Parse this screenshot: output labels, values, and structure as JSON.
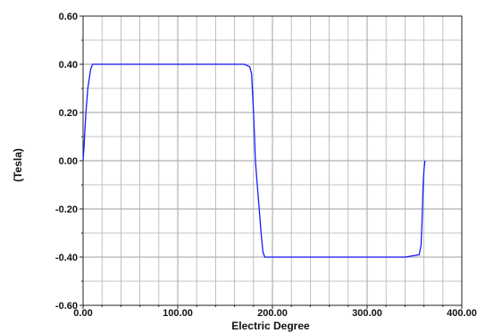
{
  "chart_data": {
    "type": "line",
    "xlabel": "Electric Degree",
    "ylabel": "(Tesla)",
    "xlim": [
      0,
      400
    ],
    "ylim": [
      -0.6,
      0.6
    ],
    "x_ticks": [
      0,
      100,
      200,
      300,
      400
    ],
    "y_ticks": [
      -0.6,
      -0.4,
      -0.2,
      0.0,
      0.2,
      0.4,
      0.6
    ],
    "x_tick_labels": [
      "0.00",
      "100.00",
      "200.00",
      "300.00",
      "400.00"
    ],
    "y_tick_labels": [
      "-0.60",
      "-0.40",
      "-0.20",
      "0.00",
      "0.20",
      "0.40",
      "0.60"
    ],
    "grid": true,
    "series_color": "#1a1aff",
    "grid_color": "#b0b0b0",
    "series": [
      {
        "x": [
          0,
          1,
          2,
          3,
          5,
          8,
          10,
          20,
          60,
          100,
          140,
          170,
          176,
          178,
          180,
          181,
          182,
          184,
          186,
          188,
          190,
          192,
          195,
          200,
          250,
          300,
          340,
          355,
          357,
          358,
          359,
          360,
          361
        ],
        "y": [
          0.0,
          0.06,
          0.13,
          0.2,
          0.3,
          0.38,
          0.4,
          0.4,
          0.4,
          0.4,
          0.4,
          0.4,
          0.39,
          0.36,
          0.2,
          0.1,
          0.0,
          -0.1,
          -0.2,
          -0.3,
          -0.38,
          -0.4,
          -0.4,
          -0.4,
          -0.4,
          -0.4,
          -0.4,
          -0.39,
          -0.35,
          -0.25,
          -0.12,
          -0.04,
          0.0
        ]
      }
    ]
  }
}
